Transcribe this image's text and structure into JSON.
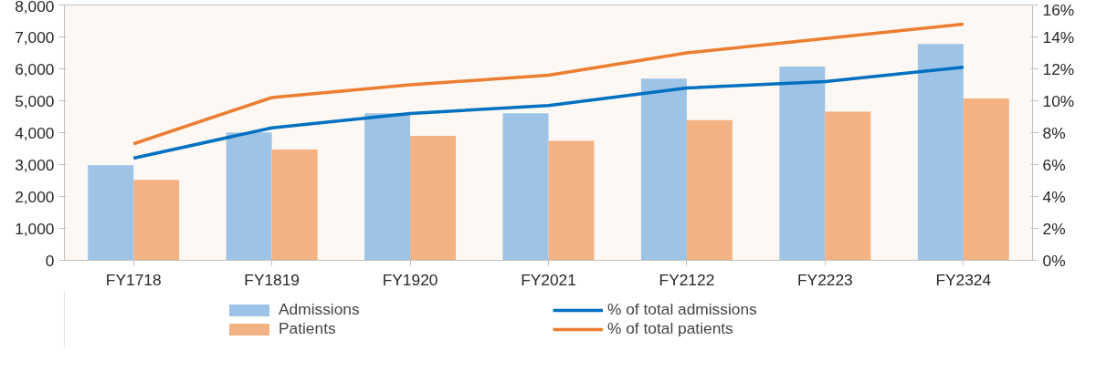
{
  "chart_data": {
    "type": "bar",
    "categories": [
      "FY1718",
      "FY1819",
      "FY1920",
      "FY2021",
      "FY2122",
      "FY2223",
      "FY2324"
    ],
    "series": [
      {
        "name": "Admissions",
        "color": "#9dc3e6",
        "values": [
          2980,
          4010,
          4610,
          4610,
          5690,
          6070,
          6780
        ]
      },
      {
        "name": "Patients",
        "color": "#f4b183",
        "values": [
          2520,
          3470,
          3900,
          3740,
          4390,
          4660,
          5070
        ]
      },
      {
        "name": "% of total admissions",
        "type": "line",
        "axis": "y2",
        "color": "#0070c0",
        "values": [
          6.4,
          8.3,
          9.2,
          9.7,
          10.8,
          11.2,
          12.1
        ]
      },
      {
        "name": "% of total patients",
        "type": "line",
        "axis": "y2",
        "color": "#ed7d31",
        "values": [
          7.3,
          10.2,
          11.0,
          11.6,
          13.0,
          13.9,
          14.8
        ]
      }
    ],
    "ylim": [
      0,
      8000
    ],
    "yticks": [
      0,
      {
        "value": 1000,
        "label": "1,000"
      },
      {
        "value": 2000,
        "label": "2,000"
      },
      {
        "value": 3000,
        "label": "3,000"
      },
      {
        "value": 4000,
        "label": "4,000"
      },
      {
        "value": 5000,
        "label": "5,000"
      },
      {
        "value": 6000,
        "label": "6,000"
      },
      {
        "value": 7000,
        "label": "7,000"
      },
      {
        "value": 8000,
        "label": "8,000"
      }
    ],
    "y2lim": [
      0,
      16
    ],
    "y2ticks": [
      {
        "value": 0,
        "label": "0%"
      },
      {
        "value": 2,
        "label": "2%"
      },
      {
        "value": 4,
        "label": "4%"
      },
      {
        "value": 6,
        "label": "6%"
      },
      {
        "value": 8,
        "label": "8%"
      },
      {
        "value": 10,
        "label": "10%"
      },
      {
        "value": 12,
        "label": "12%"
      },
      {
        "value": 14,
        "label": "14%"
      },
      {
        "value": 16,
        "label": "16%"
      }
    ],
    "grid": false,
    "legend": "bottom",
    "line_style": "solid",
    "marker": "none"
  }
}
